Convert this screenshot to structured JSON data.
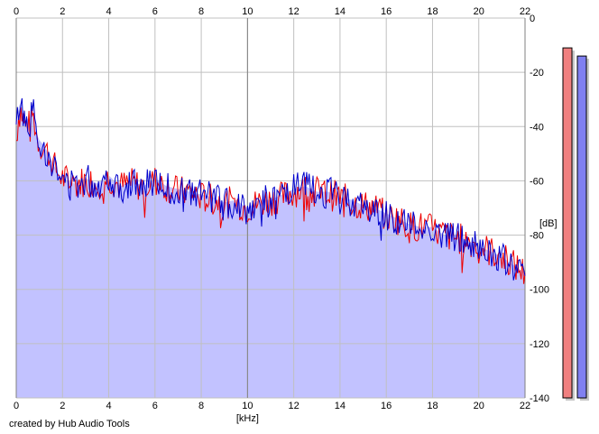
{
  "chart_data": {
    "type": "area",
    "x_unit_label": "[kHz]",
    "y_unit_label": "[dB]",
    "xlim": [
      0,
      22
    ],
    "ylim": [
      -140,
      0
    ],
    "x_ticks": [
      "0",
      "2",
      "4",
      "6",
      "8",
      "10",
      "12",
      "14",
      "16",
      "18",
      "20",
      "22"
    ],
    "y_ticks": [
      "0",
      "-20",
      "-40",
      "-60",
      "-80",
      "-100",
      "-120",
      "-140"
    ],
    "grid": true,
    "colors": {
      "fill": "#c2c2ff",
      "channel_1": "#ee0000",
      "channel_2": "#0000cc",
      "grid": "#c0c0c0",
      "meter_1": "#f08080",
      "meter_2": "#8080f0"
    },
    "series": [
      {
        "x": [
          0,
          0.1,
          0.2,
          0.3,
          0.4,
          0.5,
          0.6,
          0.7,
          0.8,
          0.9,
          1.0,
          1.2,
          1.4,
          1.6,
          1.8,
          2,
          2.5,
          3,
          3.5,
          4,
          4.5,
          5,
          5.5,
          6,
          6.5,
          7,
          7.5,
          8,
          8.5,
          9,
          9.5,
          10,
          10.5,
          11,
          11.5,
          12,
          12.5,
          13,
          13.5,
          14,
          14.5,
          15,
          15.5,
          16,
          16.5,
          17,
          17.5,
          18,
          18.5,
          19,
          19.5,
          20,
          20.5,
          21,
          21.5,
          22
        ],
        "values": [
          -45,
          -36,
          -34,
          -37,
          -40,
          -38,
          -41,
          -35,
          -39,
          -44,
          -46,
          -48,
          -50,
          -54,
          -57,
          -59,
          -61,
          -60,
          -61,
          -59,
          -62,
          -61,
          -62,
          -60,
          -62,
          -64,
          -64,
          -66,
          -67,
          -68,
          -68,
          -70,
          -68,
          -67,
          -66,
          -64,
          -63,
          -64,
          -65,
          -66,
          -68,
          -69,
          -70,
          -73,
          -74,
          -77,
          -77,
          -78,
          -80,
          -81,
          -82,
          -84,
          -86,
          -88,
          -91,
          -94
        ]
      },
      {
        "x": [
          0,
          0.1,
          0.2,
          0.3,
          0.4,
          0.5,
          0.6,
          0.7,
          0.8,
          0.9,
          1.0,
          1.2,
          1.4,
          1.6,
          1.8,
          2,
          2.5,
          3,
          3.5,
          4,
          4.5,
          5,
          5.5,
          6,
          6.5,
          7,
          7.5,
          8,
          8.5,
          9,
          9.5,
          10,
          10.5,
          11,
          11.5,
          12,
          12.5,
          13,
          13.5,
          14,
          14.5,
          15,
          15.5,
          16,
          16.5,
          17,
          17.5,
          18,
          18.5,
          19,
          19.5,
          20,
          20.5,
          21,
          21.5,
          22
        ],
        "values": [
          -42,
          -33,
          -31,
          -35,
          -38,
          -37,
          -39,
          -33,
          -37,
          -43,
          -45,
          -47,
          -51,
          -55,
          -58,
          -60,
          -62,
          -59,
          -62,
          -58,
          -63,
          -60,
          -63,
          -59,
          -63,
          -63,
          -65,
          -65,
          -66,
          -69,
          -67,
          -71,
          -67,
          -68,
          -65,
          -63,
          -62,
          -65,
          -64,
          -67,
          -67,
          -70,
          -71,
          -72,
          -75,
          -76,
          -78,
          -77,
          -81,
          -80,
          -83,
          -85,
          -87,
          -89,
          -92,
          -95
        ]
      }
    ],
    "level_meters": {
      "ylim": [
        -140,
        0
      ],
      "values": [
        -11,
        -14
      ]
    },
    "credit": "created by Hub Audio Tools"
  }
}
